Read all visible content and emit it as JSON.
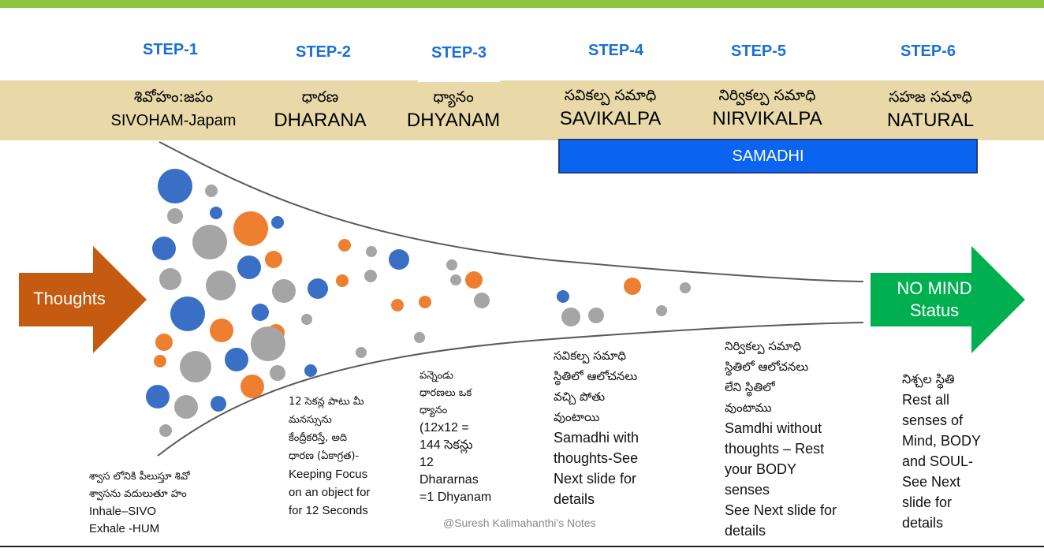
{
  "steps": [
    "STEP-1",
    "STEP-2",
    "STEP-3",
    "STEP-4",
    "STEP-5",
    "STEP-6"
  ],
  "stages": [
    {
      "telugu": "శివోహం:జపం",
      "english": "SIVOHAM-Japam"
    },
    {
      "telugu": "ధారణ",
      "english": "DHARANA"
    },
    {
      "telugu": "ధ్యానం",
      "english": "DHYANAM"
    },
    {
      "telugu": "సవికల్ప సమాధి",
      "english": "SAVIKALPA"
    },
    {
      "telugu": "నిర్వికల్ప సమాధి",
      "english": "NIRVIKALPA"
    },
    {
      "telugu": "సహజ సమాధి",
      "english": "NATURAL"
    }
  ],
  "samadhi_label": "SAMADHI",
  "thoughts_label": "Thoughts",
  "nomind_label_line1": "NO MIND",
  "nomind_label_line2": "Status",
  "colors": {
    "blue": "#3a6fc6",
    "orange": "#ee7f30",
    "gray": "#a5a5a5",
    "band": "#e9d9a9",
    "thoughts_arrow": "#c55a11",
    "nomind_arrow": "#00b050",
    "samadhi": "#0a64f0",
    "step": "#1a6fd8"
  },
  "notes": {
    "step1": {
      "te1": "శ్వాస లోనికి పీలుస్తూ శివో",
      "te2": "శ్వాసను వదులుతూ హం",
      "en1": "Inhale–SIVO",
      "en2": "Exhale -HUM"
    },
    "step2": {
      "te1": "12 సెకన్ల పాటు మీ",
      "te2": "మనస్సును",
      "te3": "కేంద్రీకరిస్తే, అది",
      "te4": "ధారణ (ఏకాగ్రత)-",
      "en1": "Keeping  Focus",
      "en2": "on an object for",
      "en3": "for 12 Seconds"
    },
    "step3": {
      "te1": "పన్నెండు",
      "te2": "ధారణలు ఒక",
      "te3": "ధ్యానం",
      "en1": "(12x12 =",
      "en2": "144 సెకన్లు",
      "en3": "12",
      "en4": "Dhararnas",
      "en5": "=1 Dhyanam"
    },
    "step4": {
      "te1": "సవికల్ప సమాధి",
      "te2": "స్థితిలో ఆలోచనలు",
      "te3": "వచ్చి పోతు",
      "te4": "వుంటాయి",
      "en1": "Samadhi with",
      "en2": "thoughts-See",
      "en3": "Next slide for",
      "en4": "details"
    },
    "step5": {
      "te1": "నిర్వికల్ప సమాధి",
      "te2": "స్థితిలో ఆలోచనలు",
      "te3": "లేని స్థితిలో",
      "te4": "వుంటాము",
      "en1": "Samdhi without",
      "en2": "thoughts – Rest",
      "en3": "your BODY",
      "en4": "senses",
      "en5": "See Next slide for",
      "en6": "details"
    },
    "step6": {
      "te1": "నిశ్చల స్థితి",
      "en1": "Rest all",
      "en2": "senses of",
      "en3": "Mind, BODY",
      "en4": "and SOUL-",
      "en5": "See Next",
      "en6": "slide for",
      "en7": "details"
    }
  },
  "watermark": "@Suresh Kalimahanthi's Notes"
}
